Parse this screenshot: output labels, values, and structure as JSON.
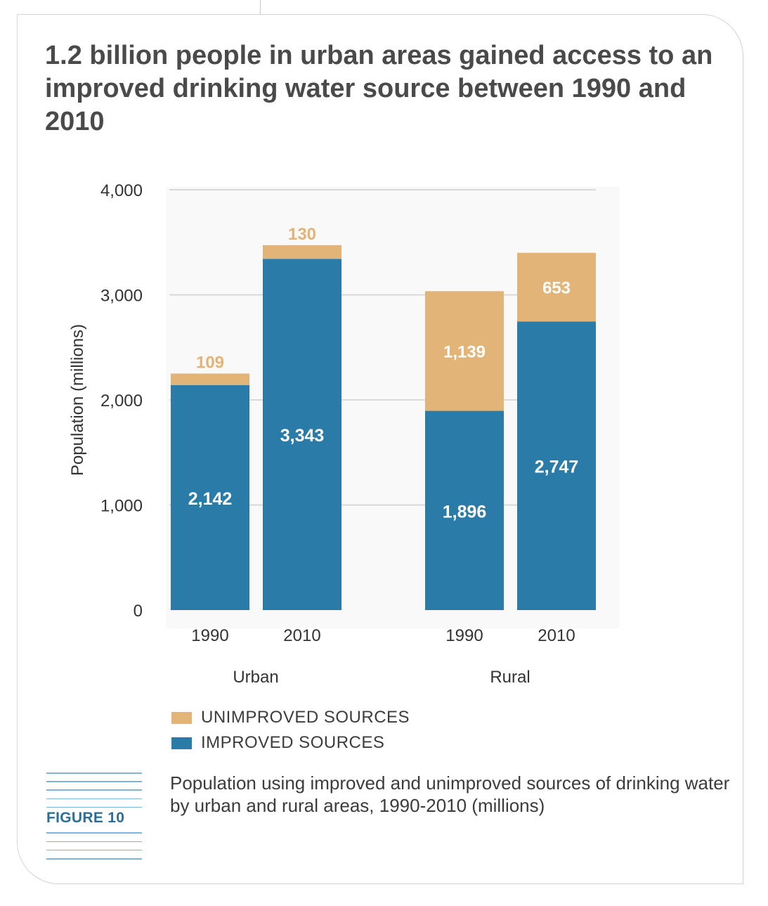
{
  "headline": "1.2 billion people in urban areas gained access to an improved drinking water source between 1990 and 2010",
  "figure_label": "FIGURE 10",
  "caption": "Population using improved and unimproved sources of drinking water by urban and rural areas, 1990-2010 (millions)",
  "colors": {
    "improved": "#2a7ba7",
    "unimproved": "#e2b477",
    "grid": "#d0d0d0",
    "text": "#333333",
    "panel_shade": "#f4f4f4"
  },
  "legend": [
    {
      "label": "UNIMPROVED SOURCES",
      "color": "#e2b477"
    },
    {
      "label": "IMPROVED SOURCES",
      "color": "#2a7ba7"
    }
  ],
  "chart_data": {
    "type": "bar",
    "stacked": true,
    "ylabel": "Population (millions)",
    "ylim": [
      0,
      4000
    ],
    "yticks": [
      0,
      1000,
      2000,
      3000,
      4000
    ],
    "ytick_labels": [
      "0",
      "1,000",
      "2,000",
      "3,000",
      "4,000"
    ],
    "grid": true,
    "groups": [
      {
        "label": "Urban",
        "categories": [
          "1990",
          "2010"
        ]
      },
      {
        "label": "Rural",
        "categories": [
          "1990",
          "2010"
        ]
      }
    ],
    "series": [
      {
        "name": "IMPROVED SOURCES",
        "values": [
          2142,
          3343,
          1896,
          2747
        ],
        "labels": [
          "2,142",
          "3,343",
          "1,896",
          "2,747"
        ]
      },
      {
        "name": "UNIMPROVED SOURCES",
        "values": [
          109,
          130,
          1139,
          653
        ],
        "labels": [
          "109",
          "130",
          "1,139",
          "653"
        ]
      }
    ]
  }
}
